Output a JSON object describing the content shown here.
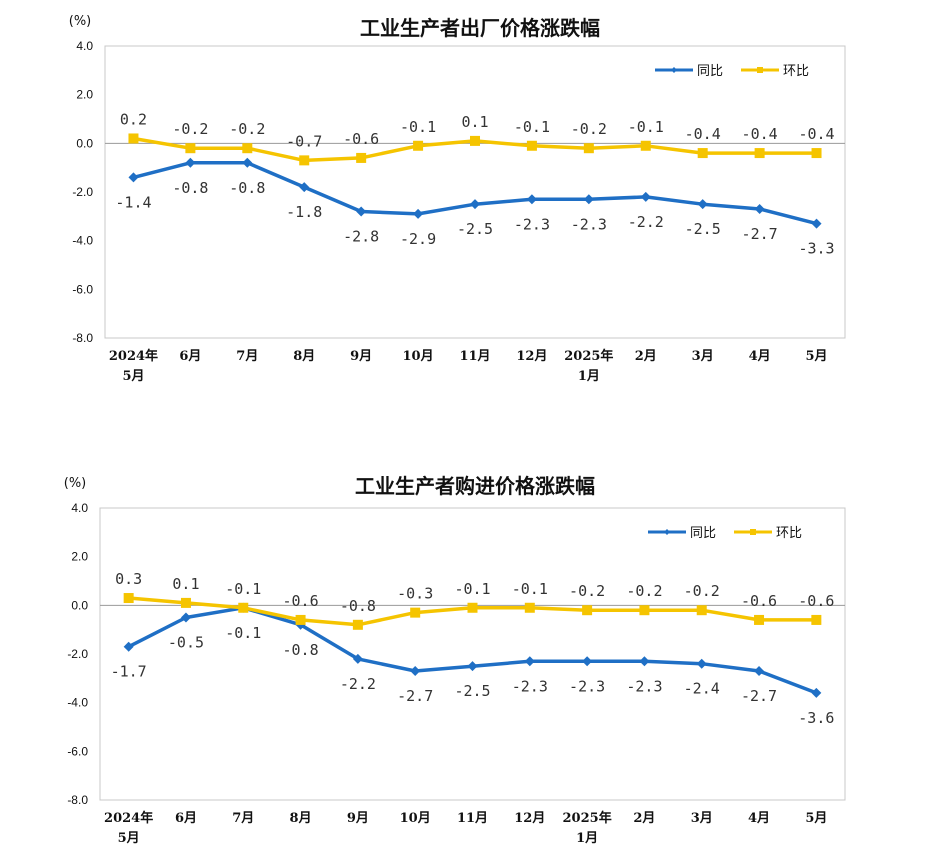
{
  "chart_data": [
    {
      "type": "line",
      "title": "工业生产者出厂价格涨跌幅",
      "ylabel": "(%)",
      "ylim": [
        -8.0,
        4.0
      ],
      "yticks": [
        "4.0",
        "2.0",
        "0.0",
        "-2.0",
        "-4.0",
        "-6.0",
        "-8.0"
      ],
      "categories": [
        [
          "2024年",
          "5月"
        ],
        [
          "6月"
        ],
        [
          "7月"
        ],
        [
          "8月"
        ],
        [
          "9月"
        ],
        [
          "10月"
        ],
        [
          "11月"
        ],
        [
          "12月"
        ],
        [
          "2025年",
          "1月"
        ],
        [
          "2月"
        ],
        [
          "3月"
        ],
        [
          "4月"
        ],
        [
          "5月"
        ]
      ],
      "legend_position": "top-right",
      "series": [
        {
          "name": "同比",
          "color": "#1f6fc5",
          "marker": "diamond",
          "values": [
            -1.4,
            -0.8,
            -0.8,
            -1.8,
            -2.8,
            -2.9,
            -2.5,
            -2.3,
            -2.3,
            -2.2,
            -2.5,
            -2.7,
            -3.3
          ],
          "labels": [
            "-1.4",
            "-0.8",
            "-0.8",
            "-1.8",
            "-2.8",
            "-2.9",
            "-2.5",
            "-2.3",
            "-2.3",
            "-2.2",
            "-2.5",
            "-2.7",
            "-3.3"
          ],
          "label_side": [
            "below",
            "below",
            "below",
            "below",
            "below",
            "below",
            "below",
            "below",
            "below",
            "below",
            "below",
            "below",
            "below"
          ]
        },
        {
          "name": "环比",
          "color": "#f5c400",
          "marker": "square",
          "values": [
            0.2,
            -0.2,
            -0.2,
            -0.7,
            -0.6,
            -0.1,
            0.1,
            -0.1,
            -0.2,
            -0.1,
            -0.4,
            -0.4,
            -0.4
          ],
          "labels": [
            "0.2",
            "-0.2",
            "-0.2",
            "-0.7",
            "-0.6",
            "-0.1",
            "0.1",
            "-0.1",
            "-0.2",
            "-0.1",
            "-0.4",
            "-0.4",
            "-0.4"
          ],
          "label_side": [
            "above",
            "above",
            "above",
            "above",
            "above",
            "above",
            "above",
            "above",
            "above",
            "above",
            "above",
            "above",
            "above"
          ]
        }
      ]
    },
    {
      "type": "line",
      "title": "工业生产者购进价格涨跌幅",
      "ylabel": "(%)",
      "ylim": [
        -8.0,
        4.0
      ],
      "yticks": [
        "4.0",
        "2.0",
        "0.0",
        "-2.0",
        "-4.0",
        "-6.0",
        "-8.0"
      ],
      "categories": [
        [
          "2024年",
          "5月"
        ],
        [
          "6月"
        ],
        [
          "7月"
        ],
        [
          "8月"
        ],
        [
          "9月"
        ],
        [
          "10月"
        ],
        [
          "11月"
        ],
        [
          "12月"
        ],
        [
          "2025年",
          "1月"
        ],
        [
          "2月"
        ],
        [
          "3月"
        ],
        [
          "4月"
        ],
        [
          "5月"
        ]
      ],
      "legend_position": "top-right",
      "series": [
        {
          "name": "同比",
          "color": "#1f6fc5",
          "marker": "diamond",
          "values": [
            -1.7,
            -0.5,
            -0.1,
            -0.8,
            -2.2,
            -2.7,
            -2.5,
            -2.3,
            -2.3,
            -2.3,
            -2.4,
            -2.7,
            -3.6
          ],
          "labels": [
            "-1.7",
            "-0.5",
            "-0.1",
            "-0.8",
            "-2.2",
            "-2.7",
            "-2.5",
            "-2.3",
            "-2.3",
            "-2.3",
            "-2.4",
            "-2.7",
            "-3.6"
          ],
          "label_side": [
            "below",
            "below",
            "below",
            "below",
            "below",
            "below",
            "below",
            "below",
            "below",
            "below",
            "below",
            "below",
            "below"
          ]
        },
        {
          "name": "环比",
          "color": "#f5c400",
          "marker": "square",
          "values": [
            0.3,
            0.1,
            -0.1,
            -0.6,
            -0.8,
            -0.3,
            -0.1,
            -0.1,
            -0.2,
            -0.2,
            -0.2,
            -0.6,
            -0.6
          ],
          "labels": [
            "0.3",
            "0.1",
            "-0.1",
            "-0.6",
            "-0.8",
            "-0.3",
            "-0.1",
            "-0.1",
            "-0.2",
            "-0.2",
            "-0.2",
            "-0.6",
            "-0.6"
          ],
          "label_side": [
            "above",
            "above",
            "above",
            "above",
            "above",
            "above",
            "above",
            "above",
            "above",
            "above",
            "above",
            "above",
            "above"
          ]
        }
      ]
    }
  ]
}
